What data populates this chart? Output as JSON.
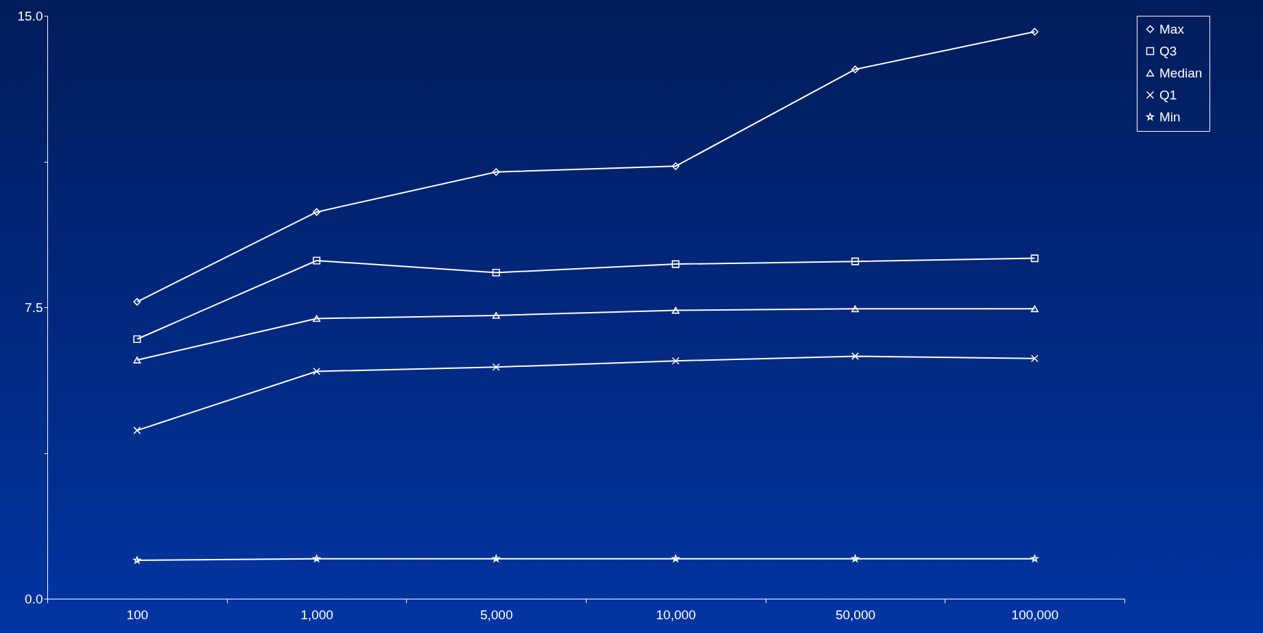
{
  "chart_data": {
    "type": "line",
    "categories": [
      "100",
      "1,000",
      "5,000",
      "10,000",
      "50,000",
      "100,000"
    ],
    "series": [
      {
        "name": "Max",
        "color": "#ffffff",
        "marker": "diamond",
        "values": [
          7.64,
          9.95,
          10.98,
          11.13,
          13.62,
          14.59
        ]
      },
      {
        "name": "Q3",
        "color": "#ffffff",
        "marker": "square",
        "values": [
          6.68,
          8.7,
          8.39,
          8.61,
          8.68,
          8.76
        ]
      },
      {
        "name": "Median",
        "color": "#ffffff",
        "marker": "triangle",
        "values": [
          6.14,
          7.21,
          7.29,
          7.42,
          7.46,
          7.46
        ]
      },
      {
        "name": "Q1",
        "color": "#ffffff",
        "marker": "cross",
        "values": [
          4.33,
          5.85,
          5.96,
          6.12,
          6.24,
          6.18
        ]
      },
      {
        "name": "Min",
        "color": "#ffffff",
        "marker": "star",
        "values": [
          0.99,
          1.03,
          1.03,
          1.03,
          1.03,
          1.03
        ]
      }
    ],
    "ylim": [
      0,
      15
    ],
    "yticks": [
      {
        "value": 0,
        "label": "0.0"
      },
      {
        "value": 3.75,
        "label": null
      },
      {
        "value": 7.5,
        "label": "7.5"
      },
      {
        "value": 11.25,
        "label": null
      },
      {
        "value": 15,
        "label": "15.0"
      }
    ],
    "grid": false,
    "legend": "right",
    "line_style": "solid"
  }
}
